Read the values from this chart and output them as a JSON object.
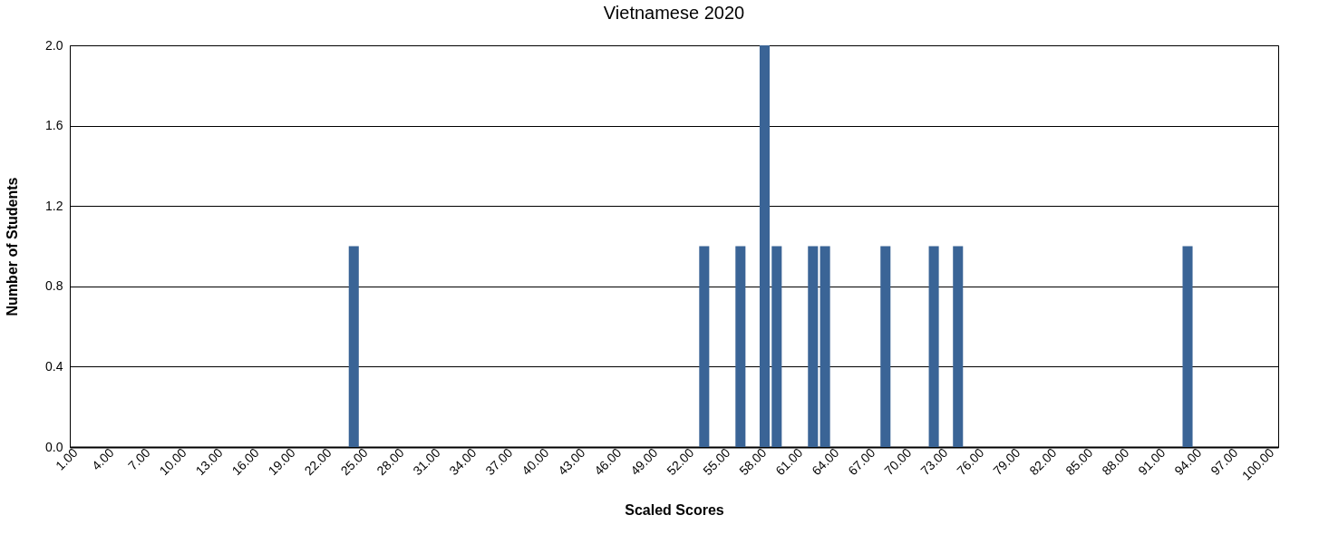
{
  "chart_data": {
    "type": "bar",
    "title": "Vietnamese 2020",
    "xlabel": "Scaled Scores",
    "ylabel": "Number of Students",
    "categories": [
      "1.00",
      null,
      null,
      "4.00",
      null,
      null,
      "7.00",
      null,
      null,
      "10.00",
      null,
      null,
      "13.00",
      null,
      null,
      "16.00",
      null,
      null,
      "19.00",
      null,
      null,
      "22.00",
      null,
      null,
      "25.00",
      null,
      null,
      "28.00",
      null,
      null,
      "31.00",
      null,
      null,
      "34.00",
      null,
      null,
      "37.00",
      null,
      null,
      "40.00",
      null,
      null,
      "43.00",
      null,
      null,
      "46.00",
      null,
      null,
      "49.00",
      null,
      null,
      "52.00",
      null,
      null,
      "55.00",
      null,
      null,
      "58.00",
      null,
      null,
      "61.00",
      null,
      null,
      "64.00",
      null,
      null,
      "67.00",
      null,
      null,
      "70.00",
      null,
      null,
      "73.00",
      null,
      null,
      "76.00",
      null,
      null,
      "79.00",
      null,
      null,
      "82.00",
      null,
      null,
      "85.00",
      null,
      null,
      "88.00",
      null,
      null,
      "91.00",
      null,
      null,
      "94.00",
      null,
      null,
      "97.00",
      null,
      null,
      "100.00"
    ],
    "values": [
      0,
      0,
      0,
      0,
      0,
      0,
      0,
      0,
      0,
      0,
      0,
      0,
      0,
      0,
      0,
      0,
      0,
      0,
      0,
      0,
      0,
      0,
      0,
      1,
      0,
      0,
      0,
      0,
      0,
      0,
      0,
      0,
      0,
      0,
      0,
      0,
      0,
      0,
      0,
      0,
      0,
      0,
      0,
      0,
      0,
      0,
      0,
      0,
      0,
      0,
      0,
      0,
      1,
      0,
      0,
      1,
      0,
      2,
      1,
      0,
      0,
      1,
      1,
      0,
      0,
      0,
      0,
      1,
      0,
      0,
      0,
      1,
      0,
      1,
      0,
      0,
      0,
      0,
      0,
      0,
      0,
      0,
      0,
      0,
      0,
      0,
      0,
      0,
      0,
      0,
      0,
      0,
      1,
      0,
      0,
      0,
      0,
      0,
      0,
      0
    ],
    "color": "#3a6496",
    "ylim": [
      0,
      2
    ],
    "yticks": [
      {
        "value": 0,
        "label": "0.0"
      },
      0.4,
      0.8,
      1.2,
      1.6,
      {
        "value": 2,
        "label": "2.0"
      }
    ],
    "grid": "y"
  }
}
